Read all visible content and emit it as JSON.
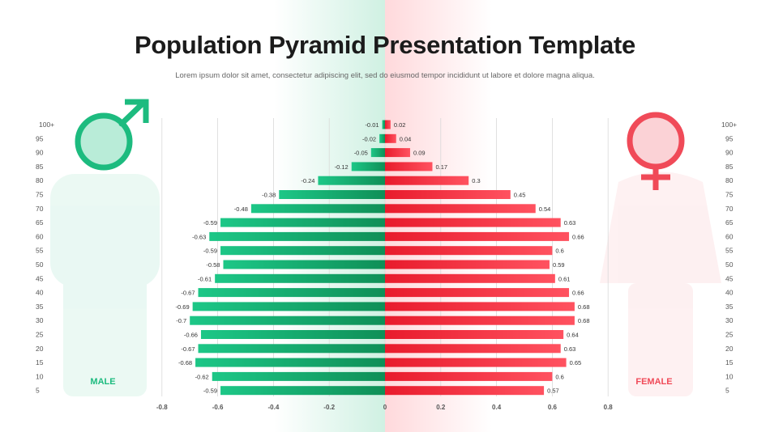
{
  "title": "Population Pyramid Presentation Template",
  "subtitle": "Lorem ipsum dolor sit amet, consectetur adipiscing elit, sed do eiusmod tempor incididunt ut labore et dolore magna aliqua.",
  "male": {
    "label": "MALE",
    "color": "#1dbb7f",
    "icon": "male-symbol-icon"
  },
  "female": {
    "label": "FEMALE",
    "color": "#f04a58",
    "icon": "female-symbol-icon"
  },
  "chart_data": {
    "type": "bar",
    "orientation": "horizontal-diverging",
    "categories": [
      "100+",
      "95",
      "90",
      "85",
      "80",
      "75",
      "70",
      "65",
      "60",
      "55",
      "50",
      "45",
      "40",
      "35",
      "30",
      "25",
      "20",
      "15",
      "10",
      "5"
    ],
    "series": [
      {
        "name": "MALE",
        "values": [
          -0.01,
          -0.02,
          -0.05,
          -0.12,
          -0.24,
          -0.38,
          -0.48,
          -0.59,
          -0.63,
          -0.59,
          -0.58,
          -0.61,
          -0.67,
          -0.69,
          -0.7,
          -0.66,
          -0.67,
          -0.68,
          -0.62,
          -0.59
        ],
        "color": "#1dbb7f"
      },
      {
        "name": "FEMALE",
        "values": [
          0.02,
          0.04,
          0.09,
          0.17,
          0.3,
          0.45,
          0.54,
          0.63,
          0.66,
          0.6,
          0.59,
          0.61,
          0.66,
          0.68,
          0.68,
          0.64,
          0.63,
          0.65,
          0.6,
          0.57
        ],
        "color": "#f04a58"
      }
    ],
    "xticks": [
      "-0.8",
      "-0.6",
      "-0.4",
      "-0.2",
      "0",
      "0.2",
      "0.4",
      "0.6",
      "0.8"
    ],
    "xlim": [
      -0.8,
      0.8
    ],
    "grid": true,
    "legend": "none"
  }
}
